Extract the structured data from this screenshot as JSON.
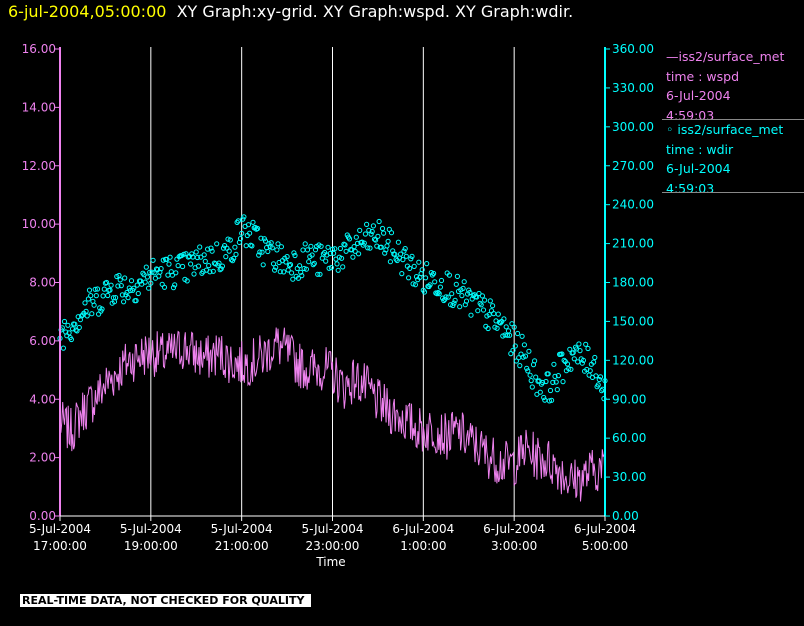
{
  "header": {
    "date": "6-jul-2004,05:00:00",
    "graphs": "XY Graph:xy-grid.  XY Graph:wspd.  XY Graph:wdir."
  },
  "legend": {
    "series1": {
      "name": "—iss2/surface_met",
      "field": "time : wspd",
      "date": "6-Jul-2004",
      "time": "4:59:03"
    },
    "series2": {
      "name": "◦ iss2/surface_met",
      "field": "time : wdir",
      "date": "6-Jul-2004",
      "time": "4:59:03"
    }
  },
  "notice": "REAL-TIME DATA, NOT CHECKED FOR QUALITY",
  "colors": {
    "wspd": "#ee82ee",
    "wdir": "#00ffff",
    "grid": "#ffffff",
    "title_date": "#ffff00"
  },
  "chart_data": {
    "type": "line",
    "xlabel": "Time",
    "x_ticks": [
      {
        "hour": 17,
        "line1": "5-Jul-2004",
        "line2": "17:00:00"
      },
      {
        "hour": 19,
        "line1": "5-Jul-2004",
        "line2": "19:00:00"
      },
      {
        "hour": 21,
        "line1": "5-Jul-2004",
        "line2": "21:00:00"
      },
      {
        "hour": 23,
        "line1": "5-Jul-2004",
        "line2": "23:00:00"
      },
      {
        "hour": 25,
        "line1": "6-Jul-2004",
        "line2": "1:00:00"
      },
      {
        "hour": 27,
        "line1": "6-Jul-2004",
        "line2": "3:00:00"
      },
      {
        "hour": 29,
        "line1": "6-Jul-2004",
        "line2": "5:00:00"
      }
    ],
    "xlim_hours": [
      17,
      29
    ],
    "y_left": {
      "ticks": [
        "0.00",
        "2.00",
        "4.00",
        "6.00",
        "8.00",
        "10.00",
        "12.00",
        "14.00",
        "16.00"
      ],
      "ylim": [
        0,
        16
      ]
    },
    "y_right": {
      "ticks": [
        "0.00",
        "30.00",
        "60.00",
        "90.00",
        "120.00",
        "150.00",
        "180.00",
        "210.00",
        "240.00",
        "270.00",
        "300.00",
        "330.00",
        "360.00"
      ],
      "ylim": [
        0,
        360
      ]
    },
    "grid": "vertical",
    "series": [
      {
        "field": "wspd",
        "axis": "left",
        "style": "line",
        "x": [
          17.0,
          17.25,
          17.5,
          17.75,
          18.0,
          18.25,
          18.5,
          18.75,
          19.0,
          19.25,
          19.5,
          19.75,
          20.0,
          20.25,
          20.5,
          20.75,
          21.0,
          21.25,
          21.5,
          21.75,
          22.0,
          22.25,
          22.5,
          22.75,
          23.0,
          23.25,
          23.5,
          23.75,
          24.0,
          24.25,
          24.5,
          24.75,
          25.0,
          25.25,
          25.5,
          25.75,
          26.0,
          26.25,
          26.5,
          26.75,
          27.0,
          27.25,
          27.5,
          27.75,
          28.0,
          28.25,
          28.5,
          28.75,
          29.0
        ],
        "values": [
          3.2,
          2.9,
          3.6,
          4.0,
          4.5,
          4.9,
          5.3,
          5.5,
          5.6,
          5.5,
          5.6,
          5.8,
          5.5,
          5.4,
          5.6,
          5.3,
          5.2,
          5.3,
          5.5,
          5.9,
          5.6,
          5.2,
          5.0,
          5.1,
          4.9,
          4.4,
          4.7,
          4.4,
          3.9,
          3.6,
          3.4,
          3.1,
          2.9,
          3.0,
          2.7,
          2.9,
          2.6,
          2.3,
          2.0,
          1.8,
          1.8,
          2.3,
          2.0,
          1.9,
          1.6,
          1.2,
          1.3,
          1.6,
          1.6
        ]
      },
      {
        "field": "wdir",
        "axis": "right",
        "style": "scatter",
        "x": [
          17.0,
          17.25,
          17.5,
          17.75,
          18.0,
          18.25,
          18.5,
          18.75,
          19.0,
          19.25,
          19.5,
          19.75,
          20.0,
          20.25,
          20.5,
          20.75,
          21.0,
          21.25,
          21.5,
          21.75,
          22.0,
          22.25,
          22.5,
          22.75,
          23.0,
          23.25,
          23.5,
          23.75,
          24.0,
          24.25,
          24.5,
          24.75,
          25.0,
          25.25,
          25.5,
          25.75,
          26.0,
          26.25,
          26.5,
          26.75,
          27.0,
          27.25,
          27.5,
          27.75,
          28.0,
          28.25,
          28.5,
          28.75,
          29.0
        ],
        "values": [
          140,
          148,
          158,
          165,
          172,
          178,
          176,
          180,
          186,
          188,
          189,
          190,
          195,
          198,
          200,
          205,
          222,
          215,
          205,
          200,
          195,
          196,
          200,
          196,
          200,
          202,
          208,
          212,
          216,
          208,
          200,
          190,
          183,
          182,
          178,
          172,
          165,
          160,
          153,
          145,
          133,
          123,
          105,
          98,
          112,
          125,
          120,
          118,
          95
        ]
      }
    ]
  }
}
